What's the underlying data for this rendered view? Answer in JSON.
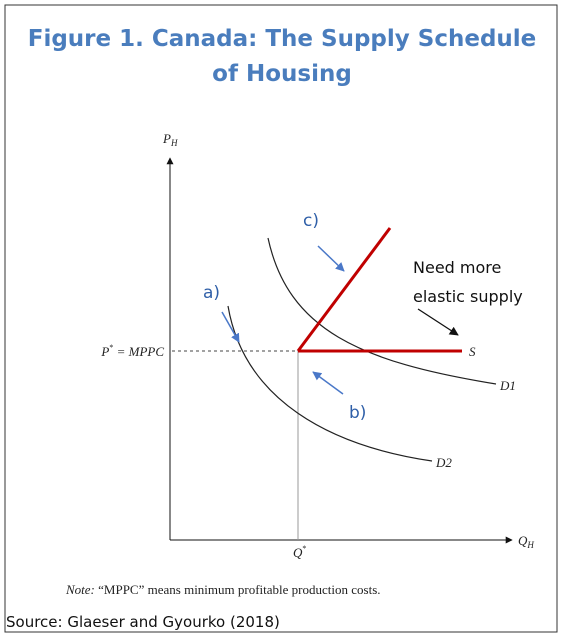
{
  "header": {
    "title_lines": [
      "Figure 1. Canada: The Supply Schedule",
      "of Housing"
    ]
  },
  "diagram": {
    "y_axis_label": "P",
    "y_axis_sub": "H",
    "x_axis_label": "Q",
    "x_axis_sub": "H",
    "price_label": "P",
    "price_sup": "*",
    "price_rest": " = MPPC",
    "quantity_label": "Q",
    "quantity_sup": "*",
    "supply_label": "S",
    "demand1_label": "D1",
    "demand2_label": "D2",
    "annotations": [
      "a)",
      "b)",
      "c)"
    ],
    "callout": [
      "Need more",
      "elastic supply"
    ]
  },
  "footer": {
    "note_prefix": "Note:",
    "note": " “MPPC” means minimum profitable production costs.",
    "source": "Source: Glaeser and Gyourko (2018)"
  }
}
